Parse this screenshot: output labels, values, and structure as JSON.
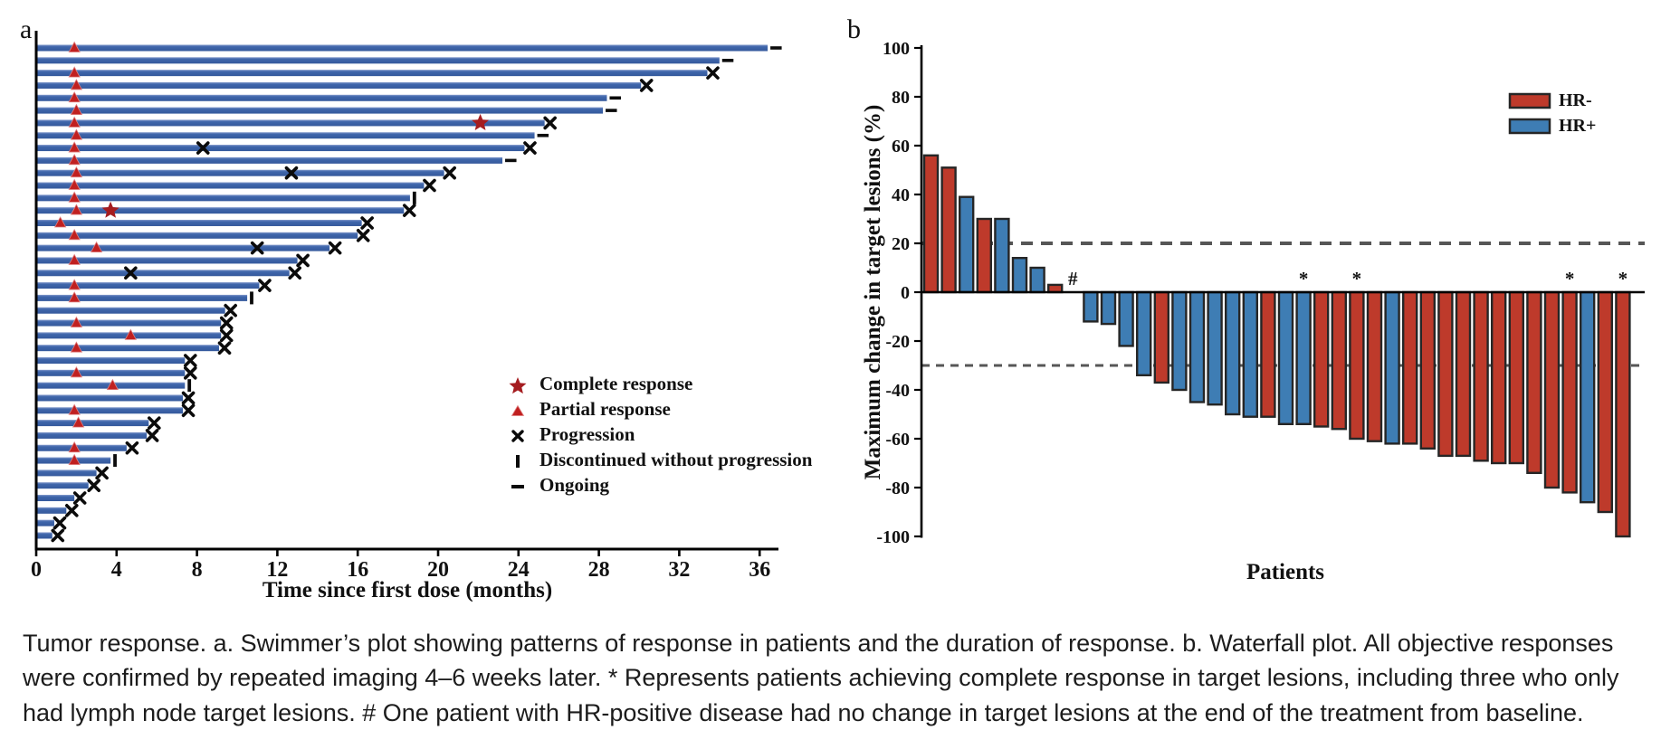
{
  "panels": {
    "a": {
      "label": "a"
    },
    "b": {
      "label": "b"
    }
  },
  "caption": "Tumor response. a. Swimmer’s plot showing patterns of response in patients and the duration of response. b. Waterfall plot. All objective responses were confirmed by repeated imaging 4–6 weeks later. * Represents patients achieving complete response in target lesions, including three who only had lymph node target lesions. # One patient with HR-positive disease had no change in target lesions at the end of the treatment from baseline.",
  "chart_data": [
    {
      "type": "swimmer",
      "xlabel": "Time since first dose (months)",
      "xticks": [
        0,
        4,
        8,
        12,
        16,
        20,
        24,
        28,
        32,
        36
      ],
      "xlim": [
        0,
        37
      ],
      "grid": false,
      "bar_color": "#3a62a8",
      "bar_highlight": "#8299cb",
      "marker_colors": {
        "complete_response": "#a51d20",
        "partial_response": "#c02020",
        "progression": "#0b0b0b",
        "discontinued": "#0b0b0b",
        "ongoing": "#0b0b0b"
      },
      "legend_position": "lower-right-inside",
      "legend": [
        {
          "marker": "star",
          "label": "Complete response"
        },
        {
          "marker": "triangle",
          "label": "Partial response"
        },
        {
          "marker": "x",
          "label": "Progression"
        },
        {
          "marker": "vbar",
          "label": "Discontinued without progression"
        },
        {
          "marker": "dash",
          "label": "Ongoing"
        }
      ],
      "patients": [
        {
          "duration": 36.4,
          "end": "ongoing",
          "pr": [
            1.9
          ]
        },
        {
          "duration": 34.0,
          "end": "ongoing",
          "pr": []
        },
        {
          "duration": 33.4,
          "end": "progression",
          "pr": [
            1.9
          ]
        },
        {
          "duration": 30.1,
          "end": "progression",
          "pr": [
            2.0
          ]
        },
        {
          "duration": 28.4,
          "end": "ongoing",
          "pr": [
            1.9
          ]
        },
        {
          "duration": 28.2,
          "end": "ongoing",
          "pr": [
            2.0
          ]
        },
        {
          "duration": 25.3,
          "end": "progression",
          "pr": [
            1.9
          ],
          "cr": [
            22.1
          ]
        },
        {
          "duration": 24.8,
          "end": "ongoing",
          "pr": [
            2.0
          ]
        },
        {
          "duration": 24.3,
          "end": "progression",
          "pr": [
            1.9
          ],
          "prog": [
            8.3
          ]
        },
        {
          "duration": 23.2,
          "end": "ongoing",
          "pr": [
            1.9
          ]
        },
        {
          "duration": 20.3,
          "end": "progression",
          "pr": [
            2.0
          ],
          "prog": [
            12.7
          ]
        },
        {
          "duration": 19.3,
          "end": "progression",
          "pr": [
            1.9
          ]
        },
        {
          "duration": 18.6,
          "end": "discontinued",
          "pr": [
            1.9
          ]
        },
        {
          "duration": 18.3,
          "end": "progression",
          "pr": [
            2.0
          ],
          "cr": [
            3.7
          ]
        },
        {
          "duration": 16.2,
          "end": "progression",
          "pr": [
            1.2
          ]
        },
        {
          "duration": 16.0,
          "end": "progression",
          "pr": [
            1.9
          ]
        },
        {
          "duration": 14.6,
          "end": "progression",
          "pr": [
            3.0
          ],
          "prog": [
            11.0
          ]
        },
        {
          "duration": 13.0,
          "end": "progression",
          "pr": [
            1.9
          ]
        },
        {
          "duration": 12.6,
          "end": "progression",
          "pr": [],
          "prog": [
            4.7
          ]
        },
        {
          "duration": 11.1,
          "end": "progression",
          "pr": [
            1.9
          ]
        },
        {
          "duration": 10.5,
          "end": "discontinued",
          "pr": [
            1.9
          ]
        },
        {
          "duration": 9.4,
          "end": "progression",
          "pr": []
        },
        {
          "duration": 9.2,
          "end": "progression",
          "pr": [
            2.0
          ]
        },
        {
          "duration": 9.2,
          "end": "progression",
          "pr": [
            4.7
          ]
        },
        {
          "duration": 9.1,
          "end": "progression",
          "pr": [
            2.0
          ]
        },
        {
          "duration": 7.4,
          "end": "progression",
          "pr": []
        },
        {
          "duration": 7.4,
          "end": "progression",
          "pr": [
            2.0
          ]
        },
        {
          "duration": 7.4,
          "end": "discontinued",
          "pr": [
            3.8
          ]
        },
        {
          "duration": 7.3,
          "end": "progression",
          "pr": []
        },
        {
          "duration": 7.3,
          "end": "progression",
          "pr": [
            1.9
          ]
        },
        {
          "duration": 5.6,
          "end": "progression",
          "pr": [
            2.1
          ]
        },
        {
          "duration": 5.5,
          "end": "progression",
          "pr": []
        },
        {
          "duration": 4.5,
          "end": "progression",
          "pr": [
            1.9
          ]
        },
        {
          "duration": 3.7,
          "end": "discontinued",
          "pr": [
            1.9
          ]
        },
        {
          "duration": 3.0,
          "end": "progression",
          "pr": []
        },
        {
          "duration": 2.6,
          "end": "progression",
          "pr": []
        },
        {
          "duration": 1.9,
          "end": "progression",
          "pr": []
        },
        {
          "duration": 1.5,
          "end": "progression",
          "pr": []
        },
        {
          "duration": 0.9,
          "end": "progression",
          "pr": []
        },
        {
          "duration": 0.8,
          "end": "progression",
          "pr": []
        }
      ]
    },
    {
      "type": "bar",
      "subtype": "waterfall",
      "ylabel": "Maximum change in target lesions (%)",
      "xlabel": "Patients",
      "ylim": [
        -100,
        100
      ],
      "yticks": [
        100,
        80,
        60,
        40,
        20,
        0,
        -20,
        -40,
        -60,
        -80,
        -100
      ],
      "ref_lines": [
        20,
        -30
      ],
      "grid": false,
      "legend_position": "upper-right-inside",
      "legend": [
        {
          "label": "HR-",
          "color": "#be3a2b"
        },
        {
          "label": "HR+",
          "color": "#3e7db4"
        }
      ],
      "group_colors": {
        "HR-": "#be3a2b",
        "HR+": "#3e7db4"
      },
      "bar_outline": "#262626",
      "bars": [
        {
          "value": 56,
          "group": "HR-"
        },
        {
          "value": 51,
          "group": "HR-"
        },
        {
          "value": 39,
          "group": "HR+"
        },
        {
          "value": 30,
          "group": "HR-"
        },
        {
          "value": 30,
          "group": "HR+"
        },
        {
          "value": 14,
          "group": "HR+"
        },
        {
          "value": 10,
          "group": "HR+"
        },
        {
          "value": 3,
          "group": "HR-"
        },
        {
          "value": 0,
          "group": "HR+",
          "note": "#"
        },
        {
          "value": -12,
          "group": "HR+"
        },
        {
          "value": -13,
          "group": "HR+"
        },
        {
          "value": -22,
          "group": "HR+"
        },
        {
          "value": -34,
          "group": "HR+"
        },
        {
          "value": -37,
          "group": "HR-"
        },
        {
          "value": -40,
          "group": "HR+"
        },
        {
          "value": -45,
          "group": "HR+"
        },
        {
          "value": -46,
          "group": "HR+"
        },
        {
          "value": -50,
          "group": "HR+"
        },
        {
          "value": -51,
          "group": "HR+"
        },
        {
          "value": -51,
          "group": "HR-"
        },
        {
          "value": -54,
          "group": "HR+"
        },
        {
          "value": -54,
          "group": "HR+",
          "note": "*"
        },
        {
          "value": -55,
          "group": "HR-"
        },
        {
          "value": -56,
          "group": "HR-"
        },
        {
          "value": -60,
          "group": "HR-",
          "note": "*"
        },
        {
          "value": -61,
          "group": "HR-"
        },
        {
          "value": -62,
          "group": "HR+"
        },
        {
          "value": -62,
          "group": "HR-"
        },
        {
          "value": -64,
          "group": "HR-"
        },
        {
          "value": -67,
          "group": "HR-"
        },
        {
          "value": -67,
          "group": "HR-"
        },
        {
          "value": -69,
          "group": "HR-"
        },
        {
          "value": -70,
          "group": "HR-"
        },
        {
          "value": -70,
          "group": "HR-"
        },
        {
          "value": -74,
          "group": "HR-"
        },
        {
          "value": -80,
          "group": "HR-"
        },
        {
          "value": -82,
          "group": "HR-",
          "note": "*"
        },
        {
          "value": -86,
          "group": "HR+"
        },
        {
          "value": -90,
          "group": "HR-"
        },
        {
          "value": -100,
          "group": "HR-",
          "note": "*"
        }
      ]
    }
  ]
}
